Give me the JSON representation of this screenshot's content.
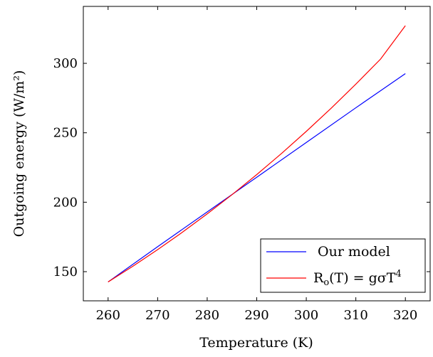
{
  "chart_data": {
    "type": "line",
    "xlabel": "Temperature (K)",
    "ylabel": "Outgoing energy (W/m²)",
    "xlim": [
      255,
      325
    ],
    "ylim": [
      129,
      341
    ],
    "xticks": [
      260,
      270,
      280,
      290,
      300,
      310,
      320
    ],
    "yticks": [
      150,
      200,
      250,
      300
    ],
    "grid": false,
    "legend_position": "bottom-right",
    "series": [
      {
        "name": "Our model",
        "color": "#0000ff",
        "x": [
          260,
          270,
          280,
          290,
          300,
          310,
          320
        ],
        "y": [
          142.6,
          168.0,
          193.0,
          218.0,
          243.0,
          268.0,
          292.6
        ]
      },
      {
        "name": "R_o(T) = gσT⁴",
        "legend_html": "R<tspan font-size=\"13\" dy=\"4\">o</tspan><tspan dy=\"-4\">(T) = gσT</tspan><tspan font-size=\"13\" dy=\"-8\">4</tspan>",
        "color": "#ff0000",
        "x": [
          260,
          265,
          270,
          275,
          280,
          285,
          290,
          295,
          300,
          305,
          310,
          315,
          320
        ],
        "y": [
          142.6,
          153.9,
          165.9,
          178.4,
          191.6,
          205.4,
          219.9,
          235.1,
          251.0,
          267.6,
          285.0,
          303.1,
          327.1
        ]
      }
    ]
  }
}
